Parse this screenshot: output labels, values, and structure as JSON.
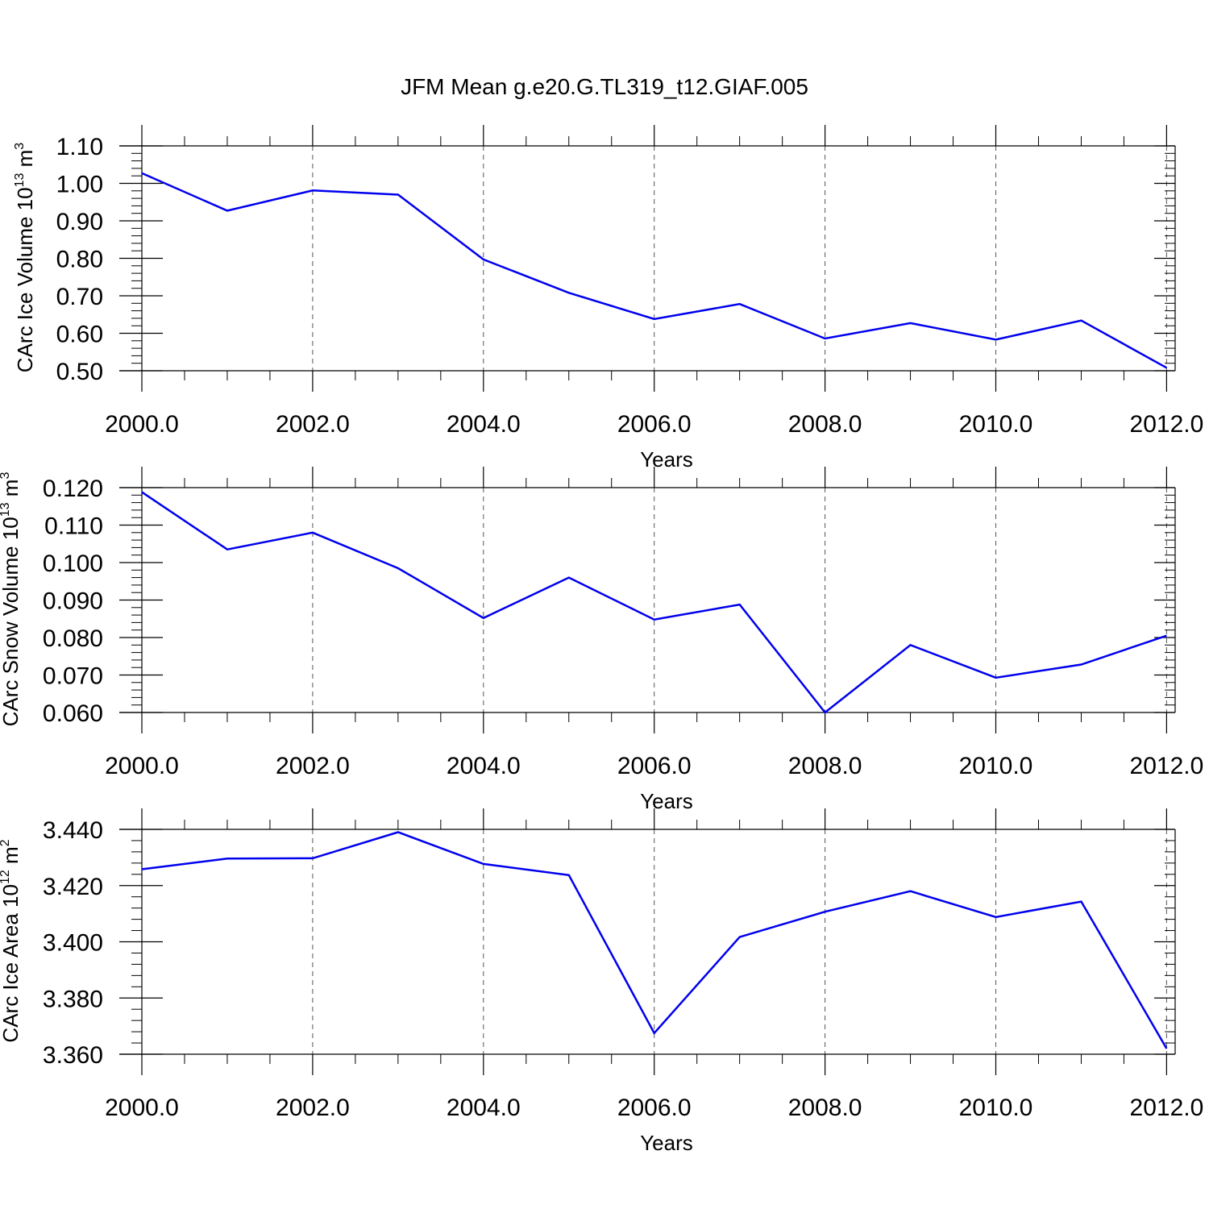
{
  "title": "JFM Mean g.e20.G.TL319_t12.GIAF.005",
  "colors": {
    "line": "#0000ee",
    "axis": "#000000",
    "grid": "#555555"
  },
  "chart_data": [
    {
      "type": "line",
      "ylabel": "CArc Ice Volume 10",
      "ylabel_exp": "13",
      "ylabel_unit": " m",
      "ylabel_unit_exp": "3",
      "xlabel": "Years",
      "x": [
        2000,
        2001,
        2002,
        2003,
        2004,
        2005,
        2006,
        2007,
        2008,
        2009,
        2010,
        2011,
        2012
      ],
      "series": [
        {
          "values": [
            1.027,
            0.927,
            0.981,
            0.97,
            0.797,
            0.708,
            0.638,
            0.678,
            0.586,
            0.627,
            0.583,
            0.634,
            0.508
          ]
        }
      ],
      "xlim": [
        2000,
        2012.1
      ],
      "ylim": [
        0.5,
        1.1
      ],
      "xticks": [
        2000,
        2002,
        2004,
        2006,
        2008,
        2010,
        2012
      ],
      "xtick_labels": [
        "2000.0",
        "2002.0",
        "2004.0",
        "2006.0",
        "2008.0",
        "2010.0",
        "2012.0"
      ],
      "yticks": [
        0.5,
        0.6,
        0.7,
        0.8,
        0.9,
        1.0,
        1.1
      ],
      "ytick_labels": [
        "0.50",
        "0.60",
        "0.70",
        "0.80",
        "0.90",
        "1.00",
        "1.10"
      ],
      "grid": "vertical-dashed"
    },
    {
      "type": "line",
      "ylabel": "CArc Snow Volume 10",
      "ylabel_exp": "13",
      "ylabel_unit": " m",
      "ylabel_unit_exp": "3",
      "xlabel": "Years",
      "x": [
        2000,
        2001,
        2002,
        2003,
        2004,
        2005,
        2006,
        2007,
        2008,
        2009,
        2010,
        2011,
        2012
      ],
      "series": [
        {
          "values": [
            0.1188,
            0.1035,
            0.108,
            0.0985,
            0.0852,
            0.096,
            0.0848,
            0.0888,
            0.06,
            0.078,
            0.0693,
            0.0728,
            0.0805
          ]
        }
      ],
      "xlim": [
        2000,
        2012.1
      ],
      "ylim": [
        0.06,
        0.12
      ],
      "xticks": [
        2000,
        2002,
        2004,
        2006,
        2008,
        2010,
        2012
      ],
      "xtick_labels": [
        "2000.0",
        "2002.0",
        "2004.0",
        "2006.0",
        "2008.0",
        "2010.0",
        "2012.0"
      ],
      "yticks": [
        0.06,
        0.07,
        0.08,
        0.09,
        0.1,
        0.11,
        0.12
      ],
      "ytick_labels": [
        "0.060",
        "0.070",
        "0.080",
        "0.090",
        "0.100",
        "0.110",
        "0.120"
      ],
      "grid": "vertical-dashed"
    },
    {
      "type": "line",
      "ylabel": "CArc Ice Area 10",
      "ylabel_exp": "12",
      "ylabel_unit": " m",
      "ylabel_unit_exp": "2",
      "xlabel": "Years",
      "x": [
        2000,
        2001,
        2002,
        2003,
        2004,
        2005,
        2006,
        2007,
        2008,
        2009,
        2010,
        2011,
        2012
      ],
      "series": [
        {
          "values": [
            3.4258,
            3.4296,
            3.4297,
            3.439,
            3.4277,
            3.4237,
            3.3675,
            3.4017,
            3.4107,
            3.418,
            3.4088,
            3.4143,
            3.362
          ]
        }
      ],
      "xlim": [
        2000,
        2012.1
      ],
      "ylim": [
        3.36,
        3.44
      ],
      "xticks": [
        2000,
        2002,
        2004,
        2006,
        2008,
        2010,
        2012
      ],
      "xtick_labels": [
        "2000.0",
        "2002.0",
        "2004.0",
        "2006.0",
        "2008.0",
        "2010.0",
        "2012.0"
      ],
      "yticks": [
        3.36,
        3.38,
        3.4,
        3.42,
        3.44
      ],
      "ytick_labels": [
        "3.360",
        "3.380",
        "3.400",
        "3.420",
        "3.440"
      ],
      "grid": "vertical-dashed"
    }
  ]
}
